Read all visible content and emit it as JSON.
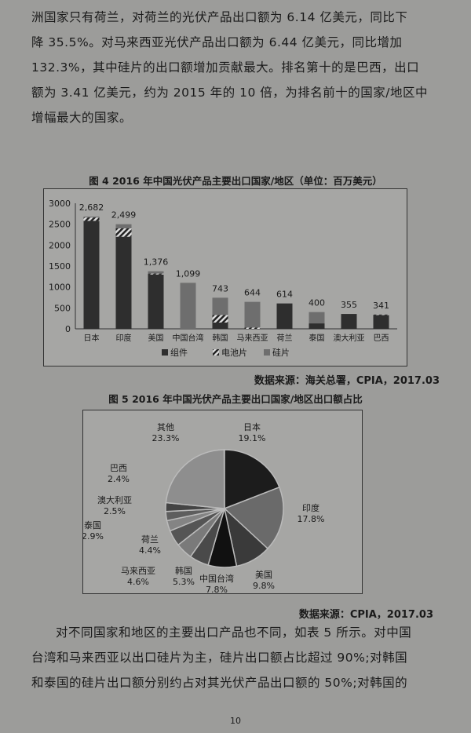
{
  "paragraph1": [
    "洲国家只有荷兰，对荷兰的光伏产品出口额为 6.14 亿美元，同比下",
    "降 35.5%。对马来西亚光伏产品出口额为 6.44 亿美元，同比增加",
    "132.3%，其中硅片的出口额增加贡献最大。排名第十的是巴西，出口",
    "额为 3.41 亿美元，约为 2015 年的 10 倍，为排名前十的国家/地区中",
    "增幅最大的国家。"
  ],
  "figure4_caption": "图 4 2016 年中国光伏产品主要出口国家/地区（单位：百万美元）",
  "figure4_source": "数据来源：海关总署，CPIA，2017.03",
  "figure5_caption": "图 5 2016 年中国光伏产品主要出口国家/地区出口额占比",
  "figure5_source": "数据来源：CPIA，2017.03",
  "paragraph2": [
    "对不同国家和地区的主要出口产品也不同，如表 5 所示。对中国",
    "台湾和马来西亚以出口硅片为主，硅片出口额占比超过 90%;对韩国",
    "和泰国的硅片出口额分别约占对其光伏产品出口额的 50%;对韩国的"
  ],
  "page_number": "10",
  "chart_data": [
    {
      "type": "bar",
      "stacked": true,
      "ylim": [
        0,
        3000
      ],
      "yticks": [
        0,
        500,
        1000,
        1500,
        2000,
        2500,
        3000
      ],
      "categories": [
        "日本",
        "印度",
        "美国",
        "中国台湾",
        "韩国",
        "马来西亚",
        "荷兰",
        "泰国",
        "澳大利亚",
        "巴西"
      ],
      "totals": [
        "2,682",
        "2,499",
        "1,376",
        "1,099",
        "743",
        "644",
        "614",
        "400",
        "355",
        "341"
      ],
      "series": [
        {
          "name": "组件",
          "values": [
            2580,
            2200,
            1300,
            0,
            150,
            0,
            600,
            130,
            355,
            330
          ],
          "color": "#2e2e2e"
        },
        {
          "name": "电池片",
          "values": [
            80,
            200,
            20,
            0,
            180,
            30,
            0,
            0,
            0,
            11
          ],
          "color": "hatch"
        },
        {
          "name": "硅片",
          "values": [
            22,
            99,
            56,
            1099,
            413,
            614,
            14,
            270,
            0,
            0
          ],
          "color": "#6e6e6e"
        }
      ],
      "legend": "bottom"
    },
    {
      "type": "pie",
      "slices": [
        {
          "label": "日本",
          "value": 19.1,
          "text": "19.1%",
          "color": "#1c1c1c"
        },
        {
          "label": "印度",
          "value": 17.8,
          "text": "17.8%",
          "color": "#6a6a6a"
        },
        {
          "label": "美国",
          "value": 9.8,
          "text": "9.8%",
          "color": "#3a3a3a"
        },
        {
          "label": "中国台湾",
          "value": 7.8,
          "text": "7.8%",
          "color": "#111111"
        },
        {
          "label": "韩国",
          "value": 5.3,
          "text": "5.3%",
          "color": "#4a4a4a"
        },
        {
          "label": "马来西亚",
          "value": 4.6,
          "text": "4.6%",
          "color": "#7a7a7a"
        },
        {
          "label": "荷兰",
          "value": 4.4,
          "text": "4.4%",
          "color": "#555555"
        },
        {
          "label": "泰国",
          "value": 2.9,
          "text": "2.9%",
          "color": "#848484"
        },
        {
          "label": "澳大利亚",
          "value": 2.5,
          "text": "2.5%",
          "color": "#5e5e5e"
        },
        {
          "label": "巴西",
          "value": 2.4,
          "text": "2.4%",
          "color": "#444444"
        },
        {
          "label": "其他",
          "value": 23.3,
          "text": "23.3%",
          "color": "#8e8e8e"
        }
      ]
    }
  ]
}
